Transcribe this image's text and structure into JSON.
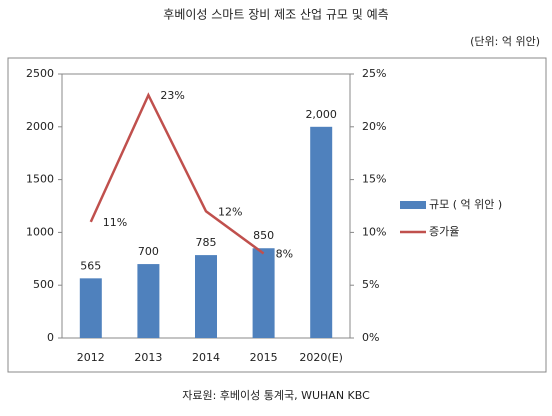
{
  "chart_data": {
    "type": "bar",
    "title": "후베이성 스마트 장비 제조 산업 규모 및 예측",
    "subtitle": "(단위: 억 위안)",
    "source": "자료원: 후베이성 통계국, WUHAN KBC",
    "categories": [
      "2012",
      "2013",
      "2014",
      "2015",
      "2020(E)"
    ],
    "series": [
      {
        "name": "규모 ( 억 위안 )",
        "type": "bar",
        "color": "#4f81bd",
        "values": [
          565,
          700,
          785,
          850,
          2000
        ],
        "value_labels": [
          "565",
          "700",
          "785",
          "850",
          "2,000"
        ]
      },
      {
        "name": "증가율",
        "type": "line",
        "axis": "y2",
        "color": "#c0504d",
        "values": [
          11,
          23,
          12,
          8,
          null
        ],
        "value_labels": [
          "11%",
          "23%",
          "12%",
          "8%",
          null
        ]
      }
    ],
    "ylim": [
      0,
      2500
    ],
    "yticks": [
      0,
      500,
      1000,
      1500,
      2000,
      2500
    ],
    "y2lim": [
      0,
      25
    ],
    "y2ticks": [
      {
        "value": 0,
        "label": "0%"
      },
      {
        "value": 5,
        "label": "5%"
      },
      {
        "value": 10,
        "label": "10%"
      },
      {
        "value": 15,
        "label": "15%"
      },
      {
        "value": 20,
        "label": "20%"
      },
      {
        "value": 25,
        "label": "25%"
      }
    ],
    "legend": "right"
  }
}
